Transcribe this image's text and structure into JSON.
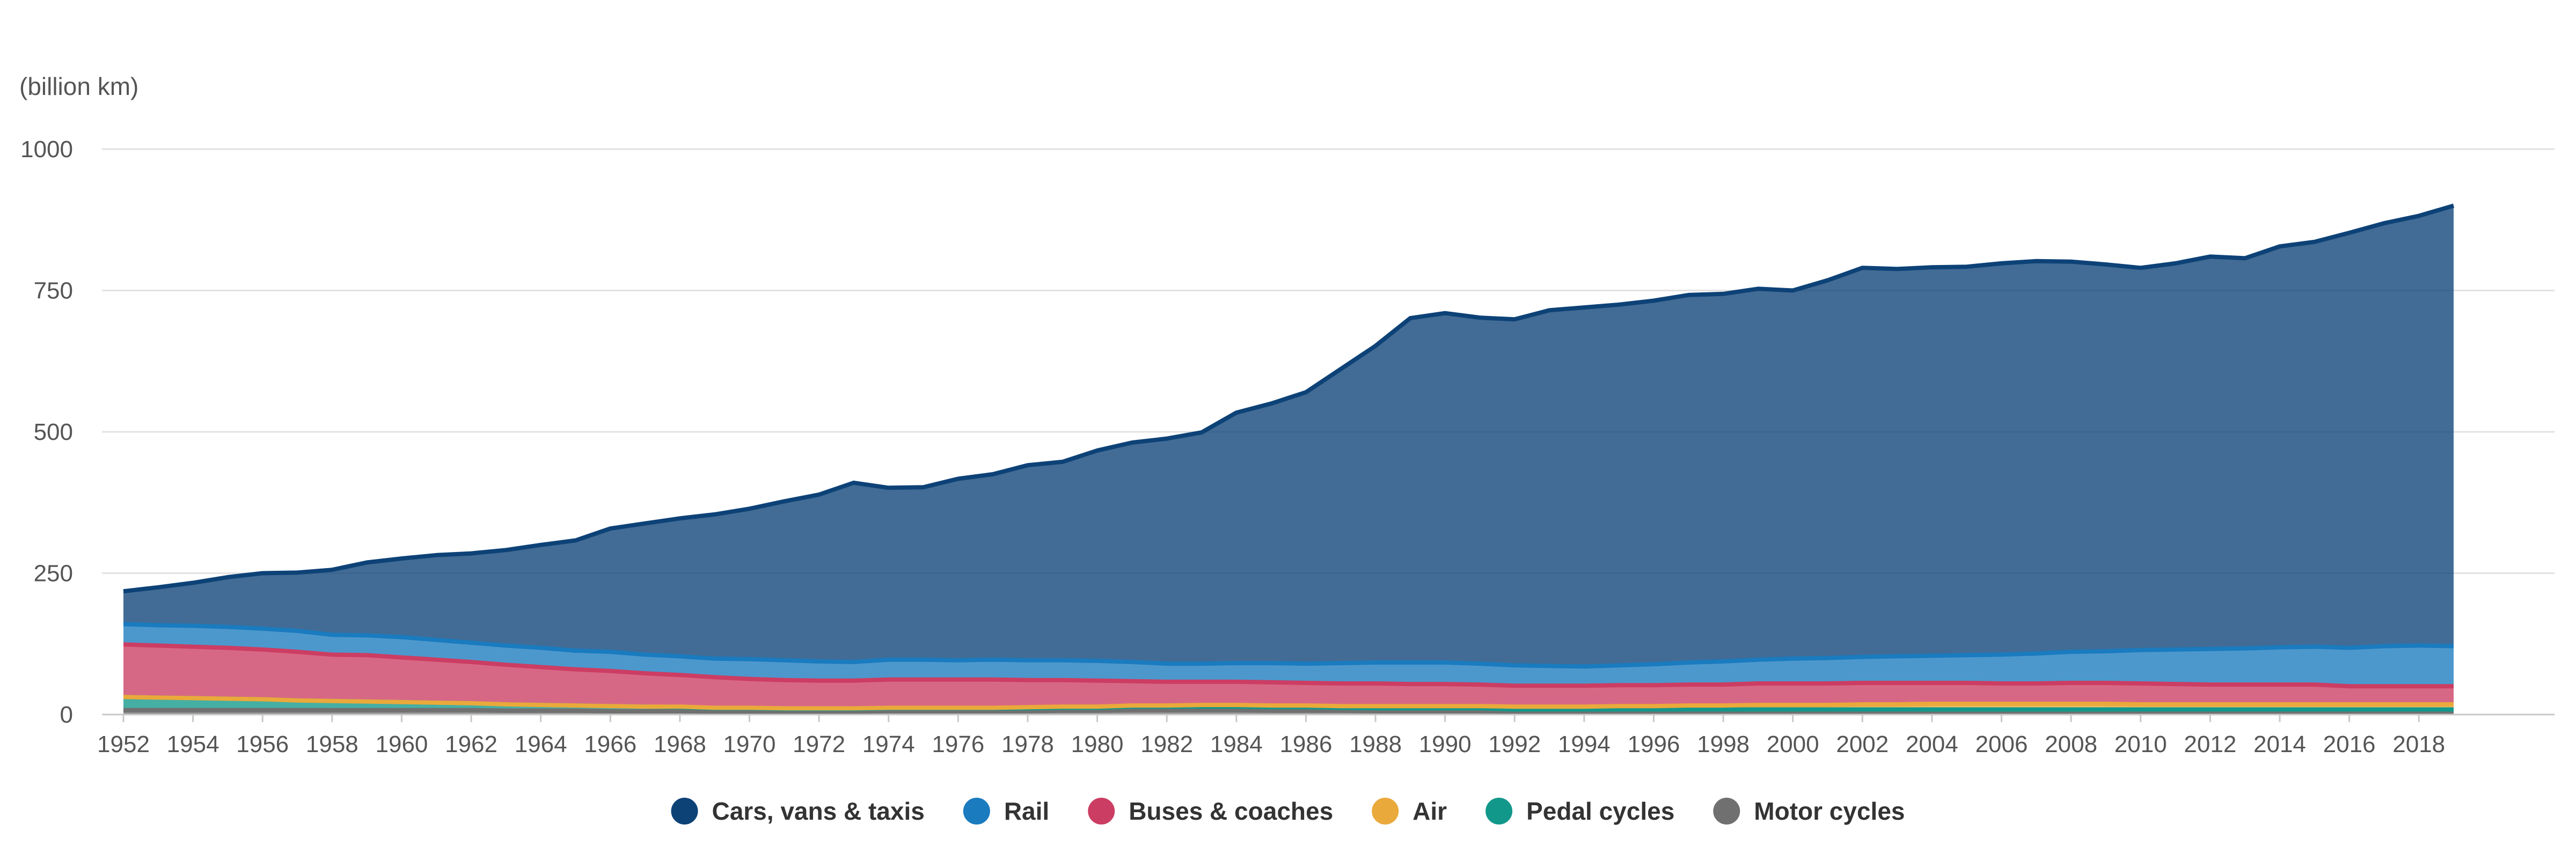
{
  "chart_data": {
    "type": "area",
    "stacked": true,
    "ylabel": "(billion km)",
    "ylim": [
      0,
      1000
    ],
    "yticks": [
      0,
      250,
      500,
      750,
      1000
    ],
    "xticks": [
      1952,
      1954,
      1956,
      1958,
      1960,
      1962,
      1964,
      1966,
      1968,
      1970,
      1972,
      1974,
      1976,
      1978,
      1980,
      1982,
      1984,
      1986,
      1988,
      1990,
      1992,
      1994,
      1996,
      1998,
      2000,
      2002,
      2004,
      2006,
      2008,
      2010,
      2012,
      2014,
      2016,
      2018
    ],
    "grid": true,
    "legend": "bottom-center",
    "years": [
      1952,
      1953,
      1954,
      1955,
      1956,
      1957,
      1958,
      1959,
      1960,
      1961,
      1962,
      1963,
      1964,
      1965,
      1966,
      1967,
      1968,
      1969,
      1970,
      1971,
      1972,
      1973,
      1974,
      1975,
      1976,
      1977,
      1978,
      1979,
      1980,
      1981,
      1982,
      1983,
      1984,
      1985,
      1986,
      1987,
      1988,
      1989,
      1990,
      1991,
      1992,
      1993,
      1994,
      1995,
      1996,
      1997,
      1998,
      1999,
      2000,
      2001,
      2002,
      2003,
      2004,
      2005,
      2006,
      2007,
      2008,
      2009,
      2010,
      2011,
      2012,
      2013,
      2014,
      2015,
      2016,
      2017,
      2018,
      2019
    ],
    "series": [
      {
        "name": "Motor cycles",
        "color": "#707070",
        "values": [
          8,
          8,
          8,
          8,
          8,
          8,
          8,
          8,
          8,
          8,
          8,
          7,
          7,
          7,
          6,
          6,
          6,
          5,
          5,
          5,
          5,
          5,
          6,
          6,
          6,
          6,
          6,
          7,
          7,
          8,
          8,
          8,
          8,
          7,
          7,
          7,
          6,
          6,
          6,
          6,
          5,
          5,
          5,
          5,
          5,
          5,
          5,
          5,
          5,
          5,
          5,
          5,
          5,
          5,
          5,
          5,
          5,
          5,
          5,
          5,
          5,
          5,
          5,
          5,
          5,
          5,
          5,
          5
        ]
      },
      {
        "name": "Pedal cycles",
        "color": "#12988a",
        "values": [
          23,
          22,
          21,
          20,
          19,
          17,
          16,
          15,
          14,
          13,
          12,
          11,
          10,
          9,
          9,
          8,
          7,
          6,
          6,
          5,
          5,
          5,
          5,
          5,
          5,
          5,
          5,
          5,
          5,
          6,
          6,
          6,
          6,
          6,
          6,
          5,
          5,
          5,
          5,
          5,
          4,
          4,
          4,
          4,
          4,
          4,
          4,
          4,
          4,
          4,
          4,
          4,
          4,
          4,
          4,
          4,
          4,
          4,
          4,
          4,
          4,
          4,
          4,
          4,
          4,
          4,
          4,
          4
        ]
      },
      {
        "name": "Air",
        "color": "#eaa93b",
        "values": [
          0,
          0,
          0,
          0,
          0,
          0,
          0,
          0,
          0,
          0,
          0,
          0,
          0,
          0,
          0,
          0,
          1,
          1,
          1,
          1,
          1,
          1,
          1,
          1,
          1,
          1,
          2,
          2,
          2,
          2,
          2,
          3,
          3,
          3,
          3,
          3,
          4,
          4,
          4,
          4,
          5,
          5,
          5,
          6,
          6,
          7,
          7,
          8,
          8,
          8,
          9,
          9,
          10,
          10,
          10,
          10,
          10,
          10,
          9,
          9,
          9,
          9,
          9,
          9,
          9,
          9,
          9,
          9
        ]
      },
      {
        "name": "Buses & coaches",
        "color": "#cc3d63",
        "values": [
          93,
          92,
          91,
          90,
          88,
          86,
          82,
          82,
          79,
          76,
          73,
          70,
          67,
          64,
          62,
          59,
          56,
          54,
          51,
          50,
          49,
          49,
          50,
          50,
          50,
          50,
          48,
          47,
          46,
          43,
          42,
          41,
          41,
          41,
          40,
          40,
          40,
          39,
          39,
          38,
          37,
          37,
          37,
          37,
          37,
          37,
          37,
          38,
          38,
          38,
          38,
          38,
          37,
          37,
          36,
          36,
          37,
          37,
          37,
          36,
          35,
          35,
          35,
          35,
          32,
          32,
          32,
          32
        ]
      },
      {
        "name": "Rail",
        "color": "#1a7bbf",
        "values": [
          36,
          36,
          37,
          37,
          37,
          37,
          35,
          35,
          36,
          35,
          34,
          34,
          34,
          33,
          34,
          33,
          33,
          33,
          35,
          35,
          34,
          33,
          35,
          35,
          34,
          35,
          35,
          35,
          35,
          34,
          32,
          32,
          33,
          34,
          34,
          36,
          37,
          38,
          38,
          37,
          36,
          35,
          34,
          35,
          37,
          39,
          41,
          42,
          44,
          45,
          46,
          47,
          48,
          49,
          51,
          53,
          55,
          56,
          59,
          61,
          63,
          64,
          66,
          67,
          68,
          71,
          72,
          71
        ]
      },
      {
        "name": "Cars, vans & taxis",
        "color": "#0d4277",
        "values": [
          58,
          67,
          76,
          88,
          98,
          103,
          115,
          129,
          139,
          150,
          158,
          169,
          182,
          195,
          218,
          232,
          244,
          255,
          266,
          281,
          295,
          317,
          304,
          305,
          321,
          328,
          345,
          351,
          372,
          388,
          398,
          409,
          443,
          459,
          480,
          520,
          560,
          609,
          618,
          612,
          612,
          629,
          635,
          638,
          643,
          650,
          650,
          656,
          651,
          668,
          688,
          685,
          687,
          687,
          692,
          694,
          690,
          684,
          676,
          683,
          694,
          690,
          709,
          716,
          734,
          748,
          760,
          779
        ]
      }
    ]
  }
}
